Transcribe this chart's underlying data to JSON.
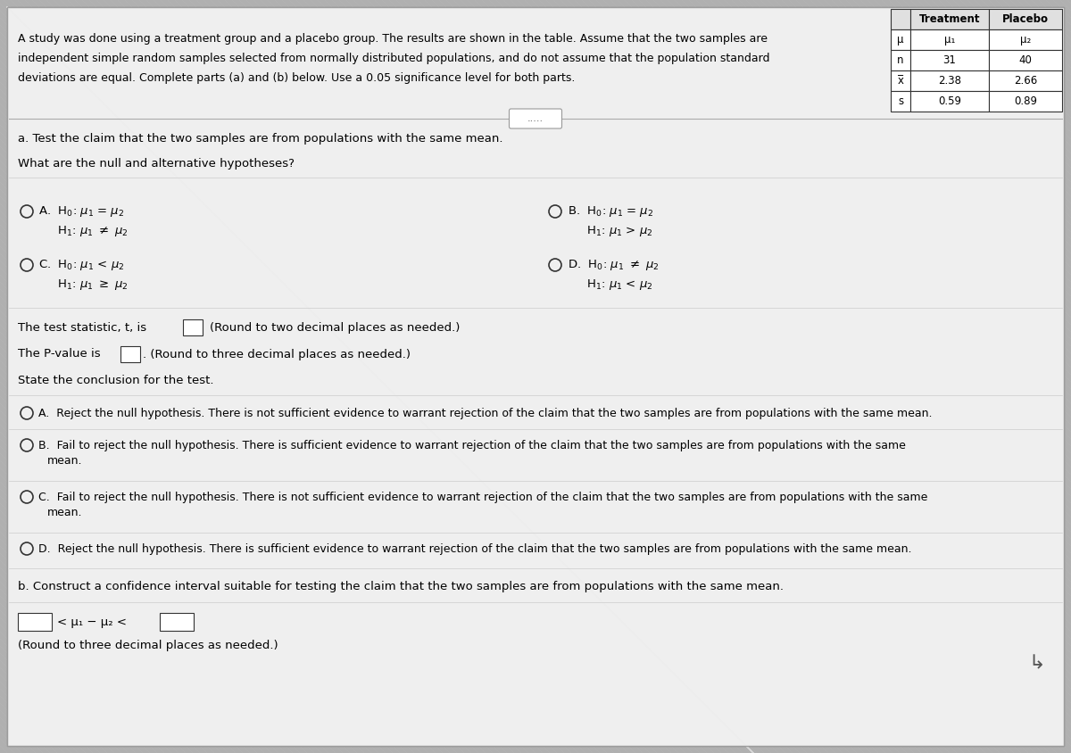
{
  "bg_color": "#c8c8c8",
  "white_bg": "#f0f0f0",
  "panel_bg": "#e8e8e8",
  "title_text_line1": "A study was done using a treatment group and a placebo group. The results are shown in the table. Assume that the two samples are",
  "title_text_line2": "independent simple random samples selected from normally distributed populations, and do not assume that the population standard",
  "title_text_line3": "deviations are equal. Complete parts (a) and (b) below. Use a 0.05 significance level for both parts.",
  "table_headers": [
    "",
    "Treatment",
    "Placebo"
  ],
  "table_rows": [
    [
      "μ",
      "μ₁",
      "μ₂"
    ],
    [
      "n",
      "31",
      "40"
    ],
    [
      "x̅",
      "2.38",
      "2.66"
    ],
    [
      "s",
      "0.59",
      "0.89"
    ]
  ],
  "section_a_title": "a. Test the claim that the two samples are from populations with the same mean.",
  "hypotheses_question": "What are the null and alternative hypotheses?",
  "test_stat_label": "The test statistic, t, is",
  "test_stat_round": "(Round to two decimal places as needed.)",
  "pvalue_label": "The P-value is",
  "pvalue_round": "(Round to three decimal places as needed.)",
  "conclusion_title": "State the conclusion for the test.",
  "conclusion_A": "A.  Reject the null hypothesis. There is not sufficient evidence to warrant rejection of the claim that the two samples are from populations with the same mean.",
  "conclusion_B1": "B.  Fail to reject the null hypothesis. There is sufficient evidence to warrant rejection of the claim that the two samples are from populations with the same",
  "conclusion_B2": "      mean.",
  "conclusion_C1": "C.  Fail to reject the null hypothesis. There is not sufficient evidence to warrant rejection of the claim that the two samples are from populations with the same",
  "conclusion_C2": "      mean.",
  "conclusion_D": "D.  Reject the null hypothesis. There is sufficient evidence to warrant rejection of the claim that the two samples are from populations with the same mean.",
  "section_b_title": "b. Construct a confidence interval suitable for testing the claim that the two samples are from populations with the same mean.",
  "ci_middle": "< μ₁ − μ₂ <",
  "ci_note": "(Round to three decimal places as needed.)",
  "dots_label": ".....",
  "font_size_main": 9.5,
  "font_size_small": 9.0,
  "font_size_table": 8.5
}
